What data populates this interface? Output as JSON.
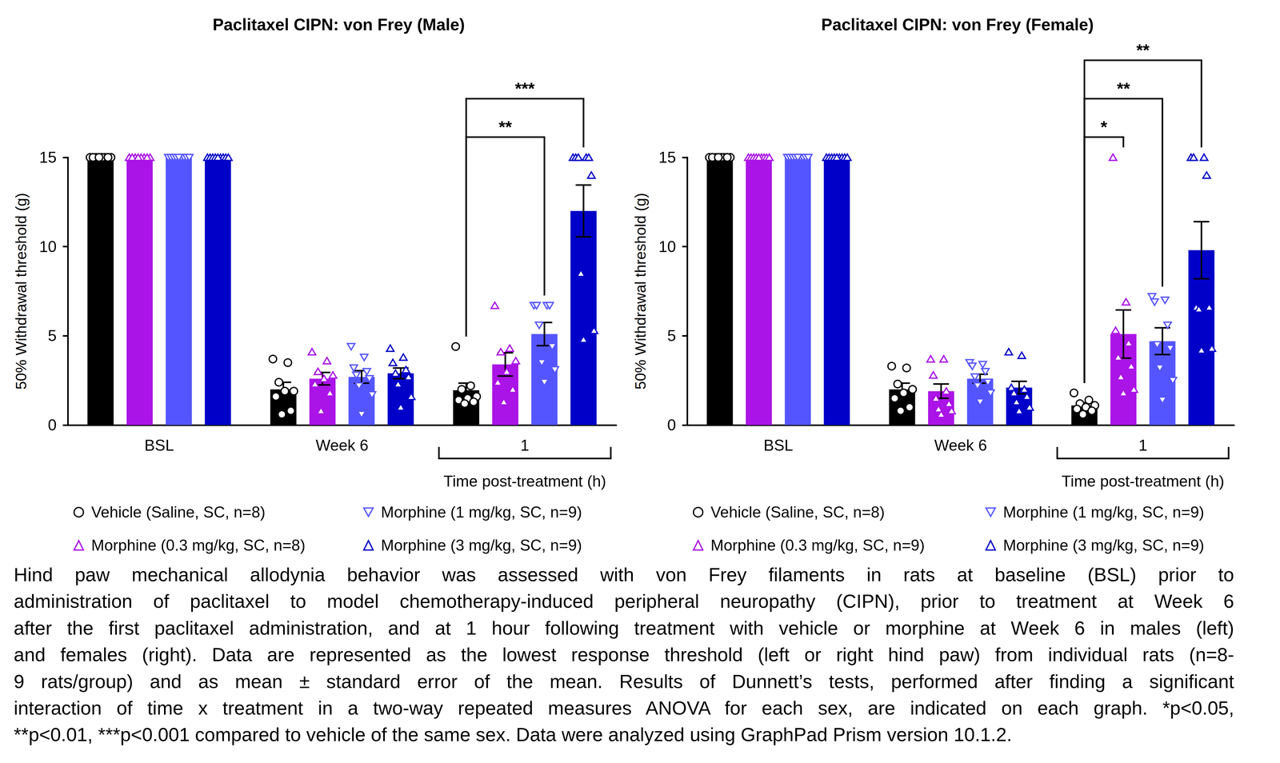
{
  "chart_data": [
    {
      "type": "bar",
      "title": "Paclitaxel CIPN: von Frey (Male)",
      "ylabel": "50% Withdrawal threshold (g)",
      "xlabel": "Time post-treatment (h)",
      "categories": [
        "BSL",
        "Week 6",
        "1"
      ],
      "ylim": [
        0,
        15
      ],
      "yticks": [
        0,
        5,
        10,
        15
      ],
      "grid": false,
      "series": [
        {
          "name": "Vehicle (Saline, SC, n=8)",
          "color": "#000000",
          "marker": "circle",
          "values": [
            15,
            2.0,
            1.95
          ],
          "sem": [
            0,
            0.4,
            0.4
          ],
          "points": [
            [
              15,
              15,
              15,
              15,
              15,
              15,
              15,
              15
            ],
            [
              3.7,
              3.5,
              2.4,
              1.9,
              1.9,
              1.6,
              0.8,
              0.6
            ],
            [
              4.4,
              2.2,
              2.0,
              1.6,
              1.5,
              1.4,
              1.3,
              1.2
            ]
          ]
        },
        {
          "name": "Morphine (0.3 mg/kg, SC, n=8)",
          "color": "#AA14E6",
          "marker": "triangle",
          "values": [
            15,
            2.6,
            3.4
          ],
          "sem": [
            0,
            0.35,
            0.65
          ],
          "points": [
            [
              15,
              15,
              15,
              15,
              15,
              15,
              15,
              15
            ],
            [
              4.1,
              3.6,
              3.0,
              2.8,
              2.6,
              2.3,
              1.8,
              0.8
            ],
            [
              6.7,
              4.3,
              4.1,
              3.6,
              3.0,
              2.4,
              2.0,
              1.3
            ]
          ]
        },
        {
          "name": "Morphine (1 mg/kg, SC, n=9)",
          "color": "#5555FF",
          "marker": "triangle-down",
          "values": [
            15,
            2.7,
            5.1
          ],
          "sem": [
            0,
            0.35,
            0.65
          ],
          "points": [
            [
              15,
              15,
              15,
              15,
              15,
              15,
              15,
              15,
              15
            ],
            [
              4.4,
              3.8,
              3.2,
              3.0,
              2.8,
              2.6,
              2.2,
              1.7,
              0.6
            ],
            [
              6.7,
              6.7,
              6.7,
              6.7,
              5.6,
              4.4,
              3.5,
              3.1,
              2.4
            ]
          ]
        },
        {
          "name": "Morphine (3 mg/kg, SC, n=9)",
          "color": "#0000C8",
          "marker": "triangle",
          "values": [
            15,
            2.9,
            12.0
          ],
          "sem": [
            0,
            0.3,
            1.45
          ],
          "points": [
            [
              15,
              15,
              15,
              15,
              15,
              15,
              15,
              15,
              15
            ],
            [
              4.3,
              3.8,
              3.5,
              3.1,
              2.9,
              2.7,
              2.3,
              1.6,
              1.0
            ],
            [
              15,
              15,
              15,
              15,
              15,
              14,
              8.5,
              5.3,
              4.8
            ]
          ]
        }
      ],
      "annotations": [
        {
          "category": "1",
          "from": "Vehicle (Saline, SC, n=8)",
          "to": "Morphine (1 mg/kg, SC, n=9)",
          "label": "**"
        },
        {
          "category": "1",
          "from": "Vehicle (Saline, SC, n=8)",
          "to": "Morphine (3 mg/kg, SC, n=9)",
          "label": "***"
        }
      ]
    },
    {
      "type": "bar",
      "title": "Paclitaxel CIPN: von Frey (Female)",
      "ylabel": "50% Withdrawal threshold (g)",
      "xlabel": "Time post-treatment (h)",
      "categories": [
        "BSL",
        "Week 6",
        "1"
      ],
      "ylim": [
        0,
        15
      ],
      "yticks": [
        0,
        5,
        10,
        15
      ],
      "grid": false,
      "series": [
        {
          "name": "Vehicle (Saline, SC, n=8)",
          "color": "#000000",
          "marker": "circle",
          "values": [
            15,
            2.0,
            1.1
          ],
          "sem": [
            0,
            0.35,
            0.15
          ],
          "points": [
            [
              15,
              15,
              15,
              15,
              15,
              15,
              15,
              15
            ],
            [
              3.3,
              3.2,
              2.3,
              2.0,
              1.8,
              1.5,
              1.0,
              0.8
            ],
            [
              1.8,
              1.4,
              1.2,
              1.1,
              1.0,
              0.9,
              0.8,
              0.6
            ]
          ]
        },
        {
          "name": "Morphine (0.3 mg/kg, SC, n=9)",
          "color": "#AA14E6",
          "marker": "triangle",
          "values": [
            15,
            1.9,
            5.1
          ],
          "sem": [
            0,
            0.4,
            1.35
          ],
          "points": [
            [
              15,
              15,
              15,
              15,
              15,
              15,
              15,
              15,
              15
            ],
            [
              3.7,
              3.7,
              2.8,
              1.9,
              1.5,
              1.2,
              0.9,
              0.8,
              0.6
            ],
            [
              15,
              6.9,
              5.3,
              4.6,
              3.8,
              3.3,
              2.7,
              2.0,
              1.8
            ]
          ]
        },
        {
          "name": "Morphine (1 mg/kg, SC, n=9)",
          "color": "#5555FF",
          "marker": "triangle-down",
          "values": [
            15,
            2.6,
            4.7
          ],
          "sem": [
            0,
            0.25,
            0.75
          ],
          "points": [
            [
              15,
              15,
              15,
              15,
              15,
              15,
              15,
              15,
              15
            ],
            [
              3.5,
              3.4,
              3.3,
              3.0,
              2.7,
              2.4,
              2.2,
              1.8,
              1.3
            ],
            [
              7.2,
              7.0,
              6.9,
              5.6,
              4.5,
              4.3,
              3.2,
              2.5,
              1.4
            ]
          ]
        },
        {
          "name": "Morphine (3 mg/kg, SC, n=9)",
          "color": "#0000C8",
          "marker": "triangle",
          "values": [
            15,
            2.1,
            9.8
          ],
          "sem": [
            0,
            0.35,
            1.6
          ],
          "points": [
            [
              15,
              15,
              15,
              15,
              15,
              15,
              15,
              15,
              15
            ],
            [
              4.1,
              3.9,
              2.1,
              2.0,
              1.8,
              1.6,
              1.3,
              1.0,
              0.8
            ],
            [
              15,
              15,
              15,
              14,
              6.6,
              6.6,
              6.5,
              4.3,
              4.2
            ]
          ]
        }
      ],
      "annotations": [
        {
          "category": "1",
          "from": "Vehicle (Saline, SC, n=8)",
          "to": "Morphine (0.3 mg/kg, SC, n=9)",
          "label": "*"
        },
        {
          "category": "1",
          "from": "Vehicle (Saline, SC, n=8)",
          "to": "Morphine (1 mg/kg, SC, n=9)",
          "label": "**"
        },
        {
          "category": "1",
          "from": "Vehicle (Saline, SC, n=8)",
          "to": "Morphine (3 mg/kg, SC, n=9)",
          "label": "**"
        }
      ]
    }
  ],
  "caption": [
    "Hind paw mechanical allodynia behavior was assessed with von Frey filaments in rats at baseline (BSL) prior to",
    "administration of paclitaxel to model chemotherapy-induced peripheral neuropathy (CIPN), prior to treatment at Week 6",
    "after the first paclitaxel administration, and at 1 hour following treatment with vehicle or morphine at Week 6 in males (left)",
    "and females (right). Data are represented as the lowest response threshold (left or right hind paw) from individual rats (n=8-",
    "9 rats/group) and as mean ± standard error of the mean. Results of Dunnett’s tests, performed after finding a significant",
    "interaction of time x treatment in a two-way repeated measures ANOVA for each sex, are indicated on each graph. *p<0.05,",
    "**p<0.01, ***p<0.001 compared to vehicle of the same sex. Data were analyzed using GraphPad Prism version 10.1.2."
  ]
}
